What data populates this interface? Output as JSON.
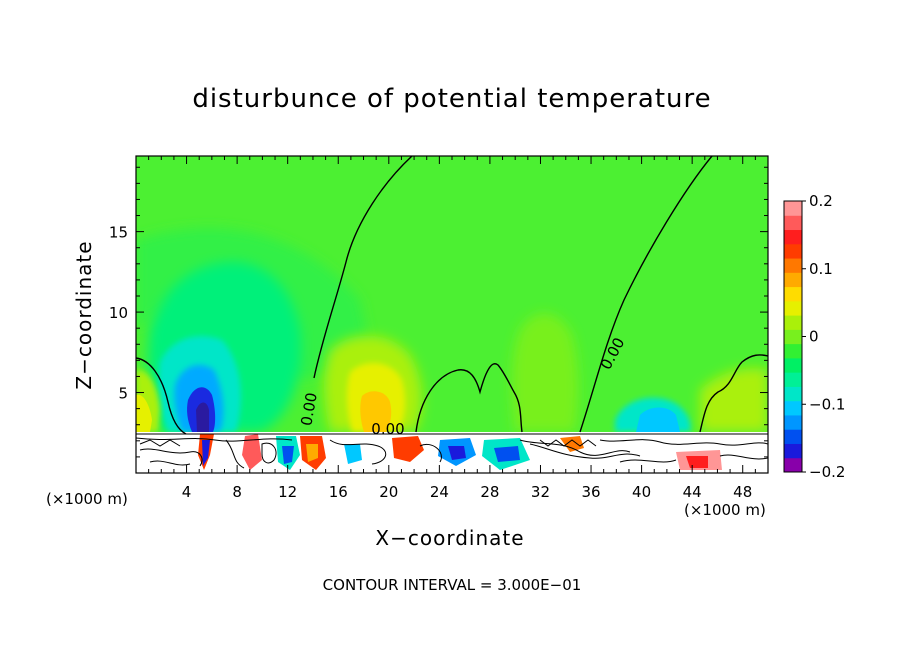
{
  "chart_data": {
    "type": "heatmap",
    "title": "disturbunce of potential temperature",
    "xlabel": "X−coordinate",
    "ylabel": "Z−coordinate",
    "x_unit_label": "(×1000 m)",
    "x_ticks": [
      4,
      8,
      12,
      16,
      20,
      24,
      28,
      32,
      36,
      40,
      44,
      48
    ],
    "y_ticks": [
      5,
      10,
      15
    ],
    "xlim": [
      0,
      50
    ],
    "ylim": [
      0,
      19.7
    ],
    "colorbar": {
      "min": -0.2,
      "max": 0.2,
      "ticks": [
        0.2,
        0.1,
        0,
        -0.1,
        -0.2
      ],
      "tick_labels": [
        "0.2",
        "0.1",
        "0",
        "−0.1",
        "−0.2"
      ],
      "colors": [
        "#8800aa",
        "#1a1adc",
        "#0050f0",
        "#0096ff",
        "#00c8ff",
        "#00e6c8",
        "#00f096",
        "#00f064",
        "#32f032",
        "#78f01e",
        "#aaf00a",
        "#e6f000",
        "#ffdc00",
        "#ffaa00",
        "#ff7800",
        "#ff3c00",
        "#ff1e1e",
        "#ff5a5a",
        "#ff9696"
      ]
    },
    "contour_labels": [
      "0.00",
      "0.00",
      "0.00"
    ],
    "contour_interval_note": "CONTOUR INTERVAL =  3.000E−01",
    "grid": false,
    "legend": "right colorbar"
  }
}
